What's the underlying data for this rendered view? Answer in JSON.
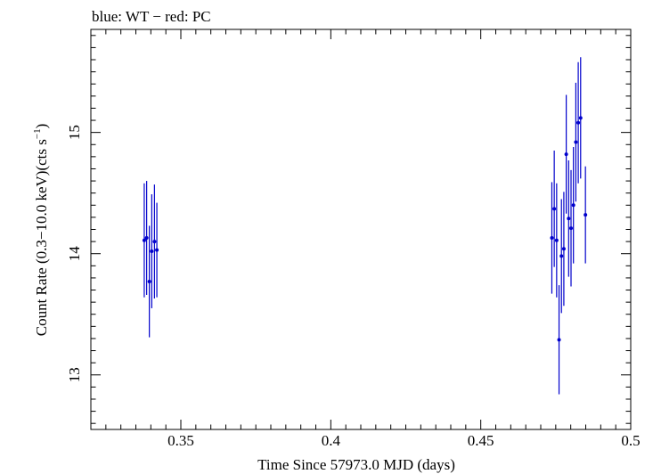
{
  "chart_data": {
    "type": "scatter",
    "title": "blue: WT − red: PC",
    "xlabel": "Time Since 57973.0 MJD (days)",
    "ylabel_main": "Count Rate (0.3−10.0 keV)(cts s",
    "ylabel_sup": "−1",
    "ylabel_close": ")",
    "xlim": [
      0.32,
      0.5
    ],
    "ylim": [
      12.55,
      15.85
    ],
    "xticks": [
      0.35,
      0.4,
      0.45,
      0.5
    ],
    "xtick_labels": [
      "0.35",
      "0.4",
      "0.45",
      "0.5"
    ],
    "yticks": [
      13,
      14,
      15
    ],
    "ytick_labels": [
      "13",
      "14",
      "15"
    ],
    "grid": false,
    "series": [
      {
        "color": "#0000cc",
        "points": [
          {
            "x": 0.3378,
            "y": 14.11,
            "err": 0.47
          },
          {
            "x": 0.3386,
            "y": 14.13,
            "err": 0.47
          },
          {
            "x": 0.3395,
            "y": 13.77,
            "err": 0.46
          },
          {
            "x": 0.3403,
            "y": 14.02,
            "err": 0.47
          },
          {
            "x": 0.3412,
            "y": 14.1,
            "err": 0.47
          },
          {
            "x": 0.342,
            "y": 14.03,
            "err": 0.39
          },
          {
            "x": 0.4737,
            "y": 14.13,
            "err": 0.46
          },
          {
            "x": 0.4745,
            "y": 14.37,
            "err": 0.48
          },
          {
            "x": 0.4753,
            "y": 14.11,
            "err": 0.47
          },
          {
            "x": 0.4761,
            "y": 13.29,
            "err": 0.45
          },
          {
            "x": 0.4769,
            "y": 13.98,
            "err": 0.47
          },
          {
            "x": 0.4777,
            "y": 14.04,
            "err": 0.47
          },
          {
            "x": 0.4785,
            "y": 14.82,
            "err": 0.49
          },
          {
            "x": 0.4793,
            "y": 14.29,
            "err": 0.48
          },
          {
            "x": 0.4801,
            "y": 14.21,
            "err": 0.48
          },
          {
            "x": 0.4809,
            "y": 14.4,
            "err": 0.48
          },
          {
            "x": 0.4817,
            "y": 14.92,
            "err": 0.49
          },
          {
            "x": 0.4825,
            "y": 15.08,
            "err": 0.5
          },
          {
            "x": 0.4833,
            "y": 15.12,
            "err": 0.5
          },
          {
            "x": 0.4849,
            "y": 14.32,
            "err": 0.4
          }
        ]
      }
    ]
  }
}
